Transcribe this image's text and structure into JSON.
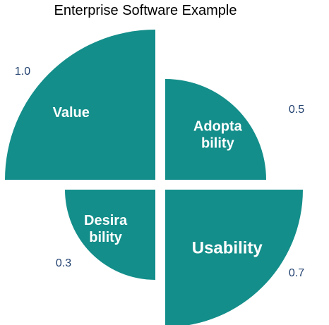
{
  "chart_data": {
    "type": "pie",
    "title": "Enterprise Software Example",
    "color": "#138e8a",
    "value_color": "#1f3f6e",
    "slices": [
      {
        "name": "Value",
        "label_lines": [
          "Value"
        ],
        "value": 1.0,
        "value_label": "1.0",
        "quadrant": "top-left"
      },
      {
        "name": "Adoptability",
        "label_lines": [
          "Adopta",
          "bility"
        ],
        "value": 0.5,
        "value_label": "0.5",
        "quadrant": "top-right"
      },
      {
        "name": "Usability",
        "label_lines": [
          "Usability"
        ],
        "value": 0.7,
        "value_label": "0.7",
        "quadrant": "bottom-right"
      },
      {
        "name": "Desirability",
        "label_lines": [
          "Desira",
          "bility"
        ],
        "value": 0.3,
        "value_label": "0.3",
        "quadrant": "bottom-left"
      }
    ]
  }
}
